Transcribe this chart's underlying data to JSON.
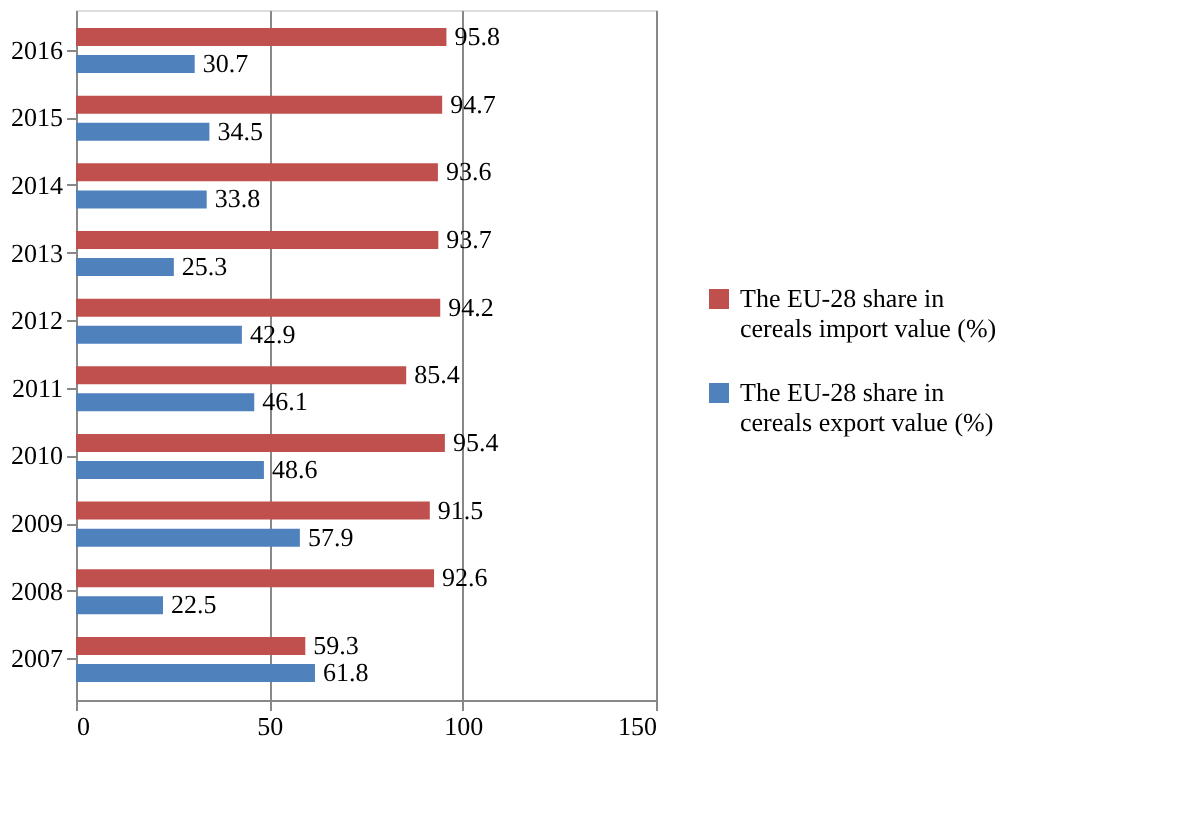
{
  "chart_data": {
    "type": "bar",
    "orientation": "horizontal",
    "categories": [
      "2016",
      "2015",
      "2014",
      "2013",
      "2012",
      "2011",
      "2010",
      "2009",
      "2008",
      "2007"
    ],
    "series": [
      {
        "name": "The EU-28 share in cereals import value (%)",
        "color": "#c0504d",
        "values": [
          95.8,
          94.7,
          93.6,
          93.7,
          94.2,
          85.4,
          95.4,
          91.5,
          92.6,
          59.3
        ]
      },
      {
        "name": "The EU-28 share in cereals export value (%)",
        "color": "#4f81bd",
        "values": [
          30.7,
          34.5,
          33.8,
          25.3,
          42.9,
          46.1,
          48.6,
          57.9,
          22.5,
          61.8
        ]
      }
    ],
    "xlim": [
      0,
      150
    ],
    "xticks": [
      0,
      50,
      100,
      150
    ],
    "grid": "x",
    "data_labels": true,
    "legend": "right"
  }
}
